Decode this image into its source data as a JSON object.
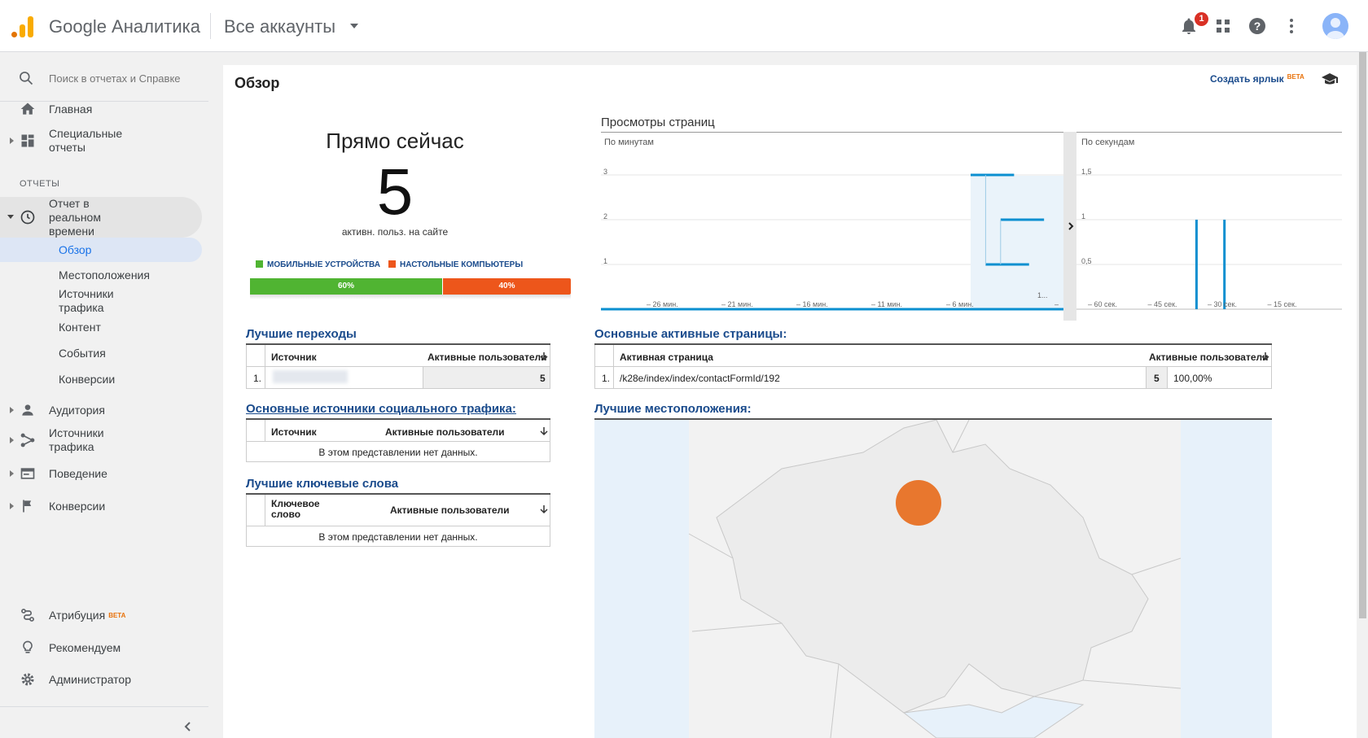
{
  "topbar": {
    "app_name": "Google Аналитика",
    "account_selector": "Все аккаунты",
    "notification_count": "1",
    "icons": [
      "notifications-icon",
      "apps-icon",
      "help-icon",
      "more-vert-icon",
      "account-avatar"
    ]
  },
  "sidebar": {
    "search_placeholder": "Поиск в отчетах и Справке",
    "home": "Главная",
    "custom_reports": "Специальные отчеты",
    "section_reports": "ОТЧЕТЫ",
    "realtime": "Отчет в реальном времени",
    "realtime_sub": [
      "Обзор",
      "Местоположения",
      "Источники трафика",
      "Контент",
      "События",
      "Конверсии"
    ],
    "audience": "Аудитория",
    "acquisition": "Источники трафика",
    "behavior": "Поведение",
    "conversions": "Конверсии",
    "attribution": "Атрибуция",
    "attribution_badge": "BETA",
    "discover": "Рекомендуем",
    "admin": "Администратор"
  },
  "main": {
    "page_title": "Обзор",
    "create_shortcut": "Создать ярлык",
    "shortcut_badge": "BETA",
    "right_now": {
      "title": "Прямо сейчас",
      "active_users": "5",
      "subtitle": "активн. польз. на сайте",
      "legend_mobile": "МОБИЛЬНЫЕ УСТРОЙСТВА",
      "legend_desktop": "НАСТОЛЬНЫЕ КОМПЬЮТЕРЫ",
      "mobile_pct": 60,
      "desktop_pct": 40,
      "mobile_label": "60%",
      "desktop_label": "40%",
      "mobile_color": "#50b432",
      "desktop_color": "#ed561b"
    },
    "pageviews": {
      "title": "Просмотры страниц",
      "per_minute_label": "По минутам",
      "per_second_label": "По секундам",
      "minute_ticks": [
        "– 26 мин.",
        "– 21 мин.",
        "– 16 мин.",
        "– 11 мин.",
        "– 6 мин.",
        "1..."
      ],
      "minute_y_ticks": [
        "3",
        "2",
        "1"
      ],
      "second_ticks": [
        "– 60 сек.",
        "– 45 сек.",
        "– 30 сек.",
        "– 15 сек."
      ],
      "second_y_ticks": [
        "1,5",
        "1",
        "0,5"
      ],
      "minute_values": [
        {
          "minutes_ago": 6,
          "value": 3
        },
        {
          "minutes_ago": 5,
          "value": 1
        },
        {
          "minutes_ago": 4,
          "value": 2
        }
      ],
      "second_values": [
        {
          "seconds_ago": 34,
          "value": 1
        },
        {
          "seconds_ago": 27,
          "value": 1
        }
      ]
    },
    "top_referrals": {
      "title": "Лучшие переходы",
      "col_source": "Источник",
      "col_active": "Активные пользователи",
      "rows": [
        {
          "index": "1.",
          "source": "",
          "value": "5"
        }
      ]
    },
    "top_social": {
      "title": "Основные источники социального трафика:",
      "col_source": "Источник",
      "col_active": "Активные пользователи",
      "empty": "В этом представлении нет данных."
    },
    "top_keywords": {
      "title": "Лучшие ключевые слова",
      "col_keyword": "Ключевое слово",
      "col_active": "Активные пользователи",
      "empty": "В этом представлении нет данных."
    },
    "top_pages": {
      "title": "Основные активные страницы:",
      "col_page": "Активная страница",
      "col_active": "Активные пользователи",
      "rows": [
        {
          "index": "1.",
          "page": "/k28e/index/index/contactFormId/192",
          "value": "5",
          "percent": "100,00%"
        }
      ]
    },
    "top_locations": {
      "title": "Лучшие местоположения:",
      "bubble_color": "#e8772e"
    }
  }
}
